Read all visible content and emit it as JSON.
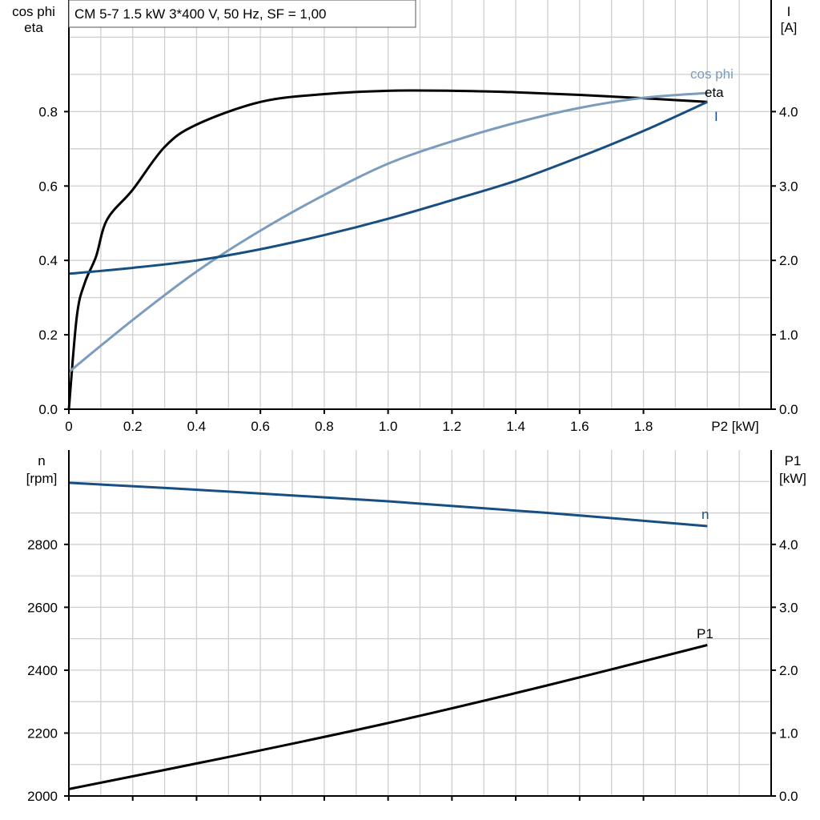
{
  "chart_data": [
    {
      "type": "line",
      "title": "CM 5-7   1.5 kW   3*400 V, 50 Hz, SF = 1,00",
      "xlabel": "P2 [kW]",
      "ylabel_left": [
        "cos phi",
        "eta"
      ],
      "ylabel_right": [
        "I",
        "[A]"
      ],
      "xlim": [
        0,
        2.2
      ],
      "ylim_left": [
        0,
        1.1
      ],
      "ylim_right": [
        0,
        5.5
      ],
      "x_ticks": [
        "0",
        "0.2",
        "0.4",
        "0.6",
        "0.8",
        "1.0",
        "1.2",
        "1.4",
        "1.6",
        "1.8"
      ],
      "y_left_ticks": [
        "0.0",
        "0.2",
        "0.4",
        "0.6",
        "0.8"
      ],
      "y_right_ticks": [
        "0.0",
        "1.0",
        "2.0",
        "3.0",
        "4.0"
      ],
      "grid": true,
      "series": [
        {
          "name": "eta",
          "axis": "left",
          "color": "#000000",
          "x": [
            0,
            0.025,
            0.05,
            0.085,
            0.12,
            0.2,
            0.3,
            0.4,
            0.6,
            0.8,
            1.0,
            1.2,
            1.4,
            1.6,
            1.8,
            2.0
          ],
          "y": [
            0,
            0.25,
            0.34,
            0.41,
            0.51,
            0.59,
            0.705,
            0.765,
            0.826,
            0.847,
            0.856,
            0.856,
            0.852,
            0.845,
            0.836,
            0.826
          ]
        },
        {
          "name": "cos phi",
          "axis": "left",
          "color": "#7b9cbd",
          "x": [
            0,
            0.2,
            0.4,
            0.6,
            0.8,
            1.0,
            1.2,
            1.4,
            1.6,
            1.8,
            2.0
          ],
          "y": [
            0.1,
            0.24,
            0.37,
            0.48,
            0.576,
            0.66,
            0.72,
            0.77,
            0.81,
            0.837,
            0.85
          ]
        },
        {
          "name": "I",
          "axis": "right",
          "color": "#174f82",
          "x": [
            0,
            0.2,
            0.4,
            0.6,
            0.8,
            1.0,
            1.2,
            1.4,
            1.6,
            1.8,
            2.0
          ],
          "y": [
            1.82,
            1.9,
            2.0,
            2.15,
            2.34,
            2.56,
            2.81,
            3.07,
            3.39,
            3.74,
            4.13
          ]
        }
      ]
    },
    {
      "type": "line",
      "xlim": [
        0,
        2.2
      ],
      "ylabel_left": [
        "n",
        "[rpm]"
      ],
      "ylabel_right": [
        "P1",
        "[kW]"
      ],
      "ylim_left": [
        2000,
        3100
      ],
      "ylim_right": [
        0,
        5.5
      ],
      "y_left_ticks": [
        "2000",
        "2200",
        "2400",
        "2600",
        "2800"
      ],
      "y_right_ticks": [
        "0.0",
        "1.0",
        "2.0",
        "3.0",
        "4.0"
      ],
      "grid": true,
      "series": [
        {
          "name": "n",
          "axis": "left",
          "color": "#174f82",
          "x": [
            0,
            0.5,
            1.0,
            1.5,
            2.0
          ],
          "y": [
            2996,
            2968,
            2937,
            2900,
            2858
          ]
        },
        {
          "name": "P1",
          "axis": "right",
          "color": "#000000",
          "x": [
            0,
            0.5,
            1.0,
            1.5,
            2.0
          ],
          "y": [
            0.11,
            0.62,
            1.16,
            1.76,
            2.4
          ]
        }
      ]
    }
  ]
}
